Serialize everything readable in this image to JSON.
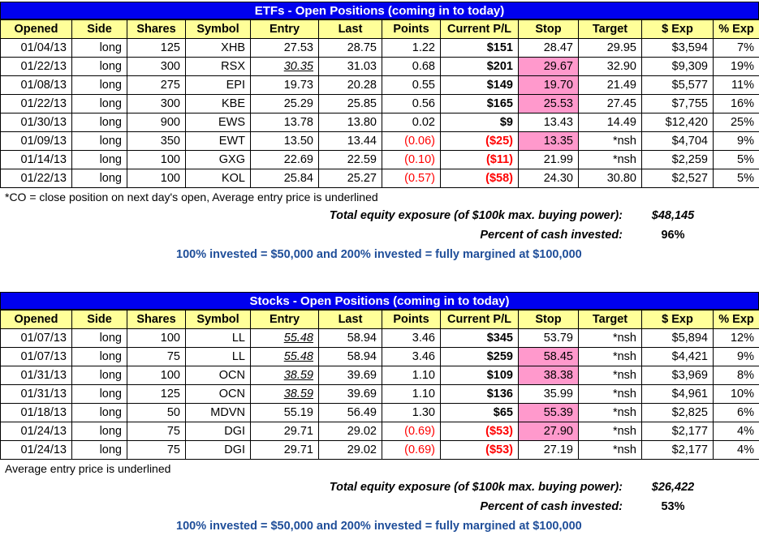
{
  "columns": [
    "Opened",
    "Side",
    "Shares",
    "Symbol",
    "Entry",
    "Last",
    "Points",
    "Current P/L",
    "Stop",
    "Target",
    "$ Exp",
    "% Exp"
  ],
  "etf": {
    "title": "ETFs - Open Positions (coming in to today)",
    "rows": [
      {
        "opened": "01/04/13",
        "side": "long",
        "shares": "125",
        "symbol": "XHB",
        "entry": "27.53",
        "entry_ul": false,
        "last": "28.75",
        "points": "1.22",
        "points_neg": false,
        "pl": "$151",
        "pl_neg": false,
        "stop": "28.47",
        "stop_hl": false,
        "target": "29.95",
        "exp": "$3,594",
        "pexp": "7%"
      },
      {
        "opened": "01/22/13",
        "side": "long",
        "shares": "300",
        "symbol": "RSX",
        "entry": "30.35",
        "entry_ul": true,
        "last": "31.03",
        "points": "0.68",
        "points_neg": false,
        "pl": "$201",
        "pl_neg": false,
        "stop": "29.67",
        "stop_hl": true,
        "target": "32.90",
        "exp": "$9,309",
        "pexp": "19%"
      },
      {
        "opened": "01/08/13",
        "side": "long",
        "shares": "275",
        "symbol": "EPI",
        "entry": "19.73",
        "entry_ul": false,
        "last": "20.28",
        "points": "0.55",
        "points_neg": false,
        "pl": "$149",
        "pl_neg": false,
        "stop": "19.70",
        "stop_hl": true,
        "target": "21.49",
        "exp": "$5,577",
        "pexp": "11%"
      },
      {
        "opened": "01/22/13",
        "side": "long",
        "shares": "300",
        "symbol": "KBE",
        "entry": "25.29",
        "entry_ul": false,
        "last": "25.85",
        "points": "0.56",
        "points_neg": false,
        "pl": "$165",
        "pl_neg": false,
        "stop": "25.53",
        "stop_hl": true,
        "target": "27.45",
        "exp": "$7,755",
        "pexp": "16%"
      },
      {
        "opened": "01/30/13",
        "side": "long",
        "shares": "900",
        "symbol": "EWS",
        "entry": "13.78",
        "entry_ul": false,
        "last": "13.80",
        "points": "0.02",
        "points_neg": false,
        "pl": "$9",
        "pl_neg": false,
        "stop": "13.43",
        "stop_hl": false,
        "target": "14.49",
        "exp": "$12,420",
        "pexp": "25%"
      },
      {
        "opened": "01/09/13",
        "side": "long",
        "shares": "350",
        "symbol": "EWT",
        "entry": "13.50",
        "entry_ul": false,
        "last": "13.44",
        "points": "(0.06)",
        "points_neg": true,
        "pl": "($25)",
        "pl_neg": true,
        "stop": "13.35",
        "stop_hl": true,
        "target": "*nsh",
        "exp": "$4,704",
        "pexp": "9%"
      },
      {
        "opened": "01/14/13",
        "side": "long",
        "shares": "100",
        "symbol": "GXG",
        "entry": "22.69",
        "entry_ul": false,
        "last": "22.59",
        "points": "(0.10)",
        "points_neg": true,
        "pl": "($11)",
        "pl_neg": true,
        "stop": "21.99",
        "stop_hl": false,
        "target": "*nsh",
        "exp": "$2,259",
        "pexp": "5%"
      },
      {
        "opened": "01/22/13",
        "side": "long",
        "shares": "100",
        "symbol": "KOL",
        "entry": "25.84",
        "entry_ul": false,
        "last": "25.27",
        "points": "(0.57)",
        "points_neg": true,
        "pl": "($58)",
        "pl_neg": true,
        "stop": "24.30",
        "stop_hl": false,
        "target": "30.80",
        "exp": "$2,527",
        "pexp": "5%"
      }
    ],
    "note": "*CO = close position on next day's open, Average entry price is underlined",
    "total_label": "Total equity exposure (of $100k max. buying power):",
    "total_value": "$48,145",
    "percent_label": "Percent of cash invested:",
    "percent_value": "96%",
    "footer": "100% invested = $50,000 and 200% invested = fully margined at $100,000"
  },
  "stocks": {
    "title": "Stocks - Open Positions (coming in to today)",
    "rows": [
      {
        "opened": "01/07/13",
        "side": "long",
        "shares": "100",
        "symbol": "LL",
        "entry": "55.48",
        "entry_ul": true,
        "last": "58.94",
        "points": "3.46",
        "points_neg": false,
        "pl": "$345",
        "pl_neg": false,
        "stop": "53.79",
        "stop_hl": false,
        "target": "*nsh",
        "exp": "$5,894",
        "pexp": "12%"
      },
      {
        "opened": "01/07/13",
        "side": "long",
        "shares": "75",
        "symbol": "LL",
        "entry": "55.48",
        "entry_ul": true,
        "last": "58.94",
        "points": "3.46",
        "points_neg": false,
        "pl": "$259",
        "pl_neg": false,
        "stop": "58.45",
        "stop_hl": true,
        "target": "*nsh",
        "exp": "$4,421",
        "pexp": "9%"
      },
      {
        "opened": "01/31/13",
        "side": "long",
        "shares": "100",
        "symbol": "OCN",
        "entry": "38.59",
        "entry_ul": true,
        "last": "39.69",
        "points": "1.10",
        "points_neg": false,
        "pl": "$109",
        "pl_neg": false,
        "stop": "38.38",
        "stop_hl": true,
        "target": "*nsh",
        "exp": "$3,969",
        "pexp": "8%"
      },
      {
        "opened": "01/31/13",
        "side": "long",
        "shares": "125",
        "symbol": "OCN",
        "entry": "38.59",
        "entry_ul": true,
        "last": "39.69",
        "points": "1.10",
        "points_neg": false,
        "pl": "$136",
        "pl_neg": false,
        "stop": "35.99",
        "stop_hl": false,
        "target": "*nsh",
        "exp": "$4,961",
        "pexp": "10%"
      },
      {
        "opened": "01/18/13",
        "side": "long",
        "shares": "50",
        "symbol": "MDVN",
        "entry": "55.19",
        "entry_ul": false,
        "last": "56.49",
        "points": "1.30",
        "points_neg": false,
        "pl": "$65",
        "pl_neg": false,
        "stop": "55.39",
        "stop_hl": true,
        "target": "*nsh",
        "exp": "$2,825",
        "pexp": "6%"
      },
      {
        "opened": "01/24/13",
        "side": "long",
        "shares": "75",
        "symbol": "DGI",
        "entry": "29.71",
        "entry_ul": false,
        "last": "29.02",
        "points": "(0.69)",
        "points_neg": true,
        "pl": "($53)",
        "pl_neg": true,
        "stop": "27.90",
        "stop_hl": true,
        "target": "*nsh",
        "exp": "$2,177",
        "pexp": "4%"
      },
      {
        "opened": "01/24/13",
        "side": "long",
        "shares": "75",
        "symbol": "DGI",
        "entry": "29.71",
        "entry_ul": false,
        "last": "29.02",
        "points": "(0.69)",
        "points_neg": true,
        "pl": "($53)",
        "pl_neg": true,
        "stop": "27.19",
        "stop_hl": false,
        "target": "*nsh",
        "exp": "$2,177",
        "pexp": "4%"
      }
    ],
    "note": "Average entry price is underlined",
    "total_label": "Total equity exposure (of $100k max. buying power):",
    "total_value": "$26,422",
    "percent_label": "Percent of cash invested:",
    "percent_value": "53%",
    "footer": "100% invested = $50,000 and 200% invested = fully margined at $100,000"
  },
  "colors": {
    "title_bg": "#0000ee",
    "header_bg": "#ffff99",
    "stop_highlight": "#ff99cc",
    "negative": "#ff0000",
    "footer_text": "#1f4e99"
  }
}
